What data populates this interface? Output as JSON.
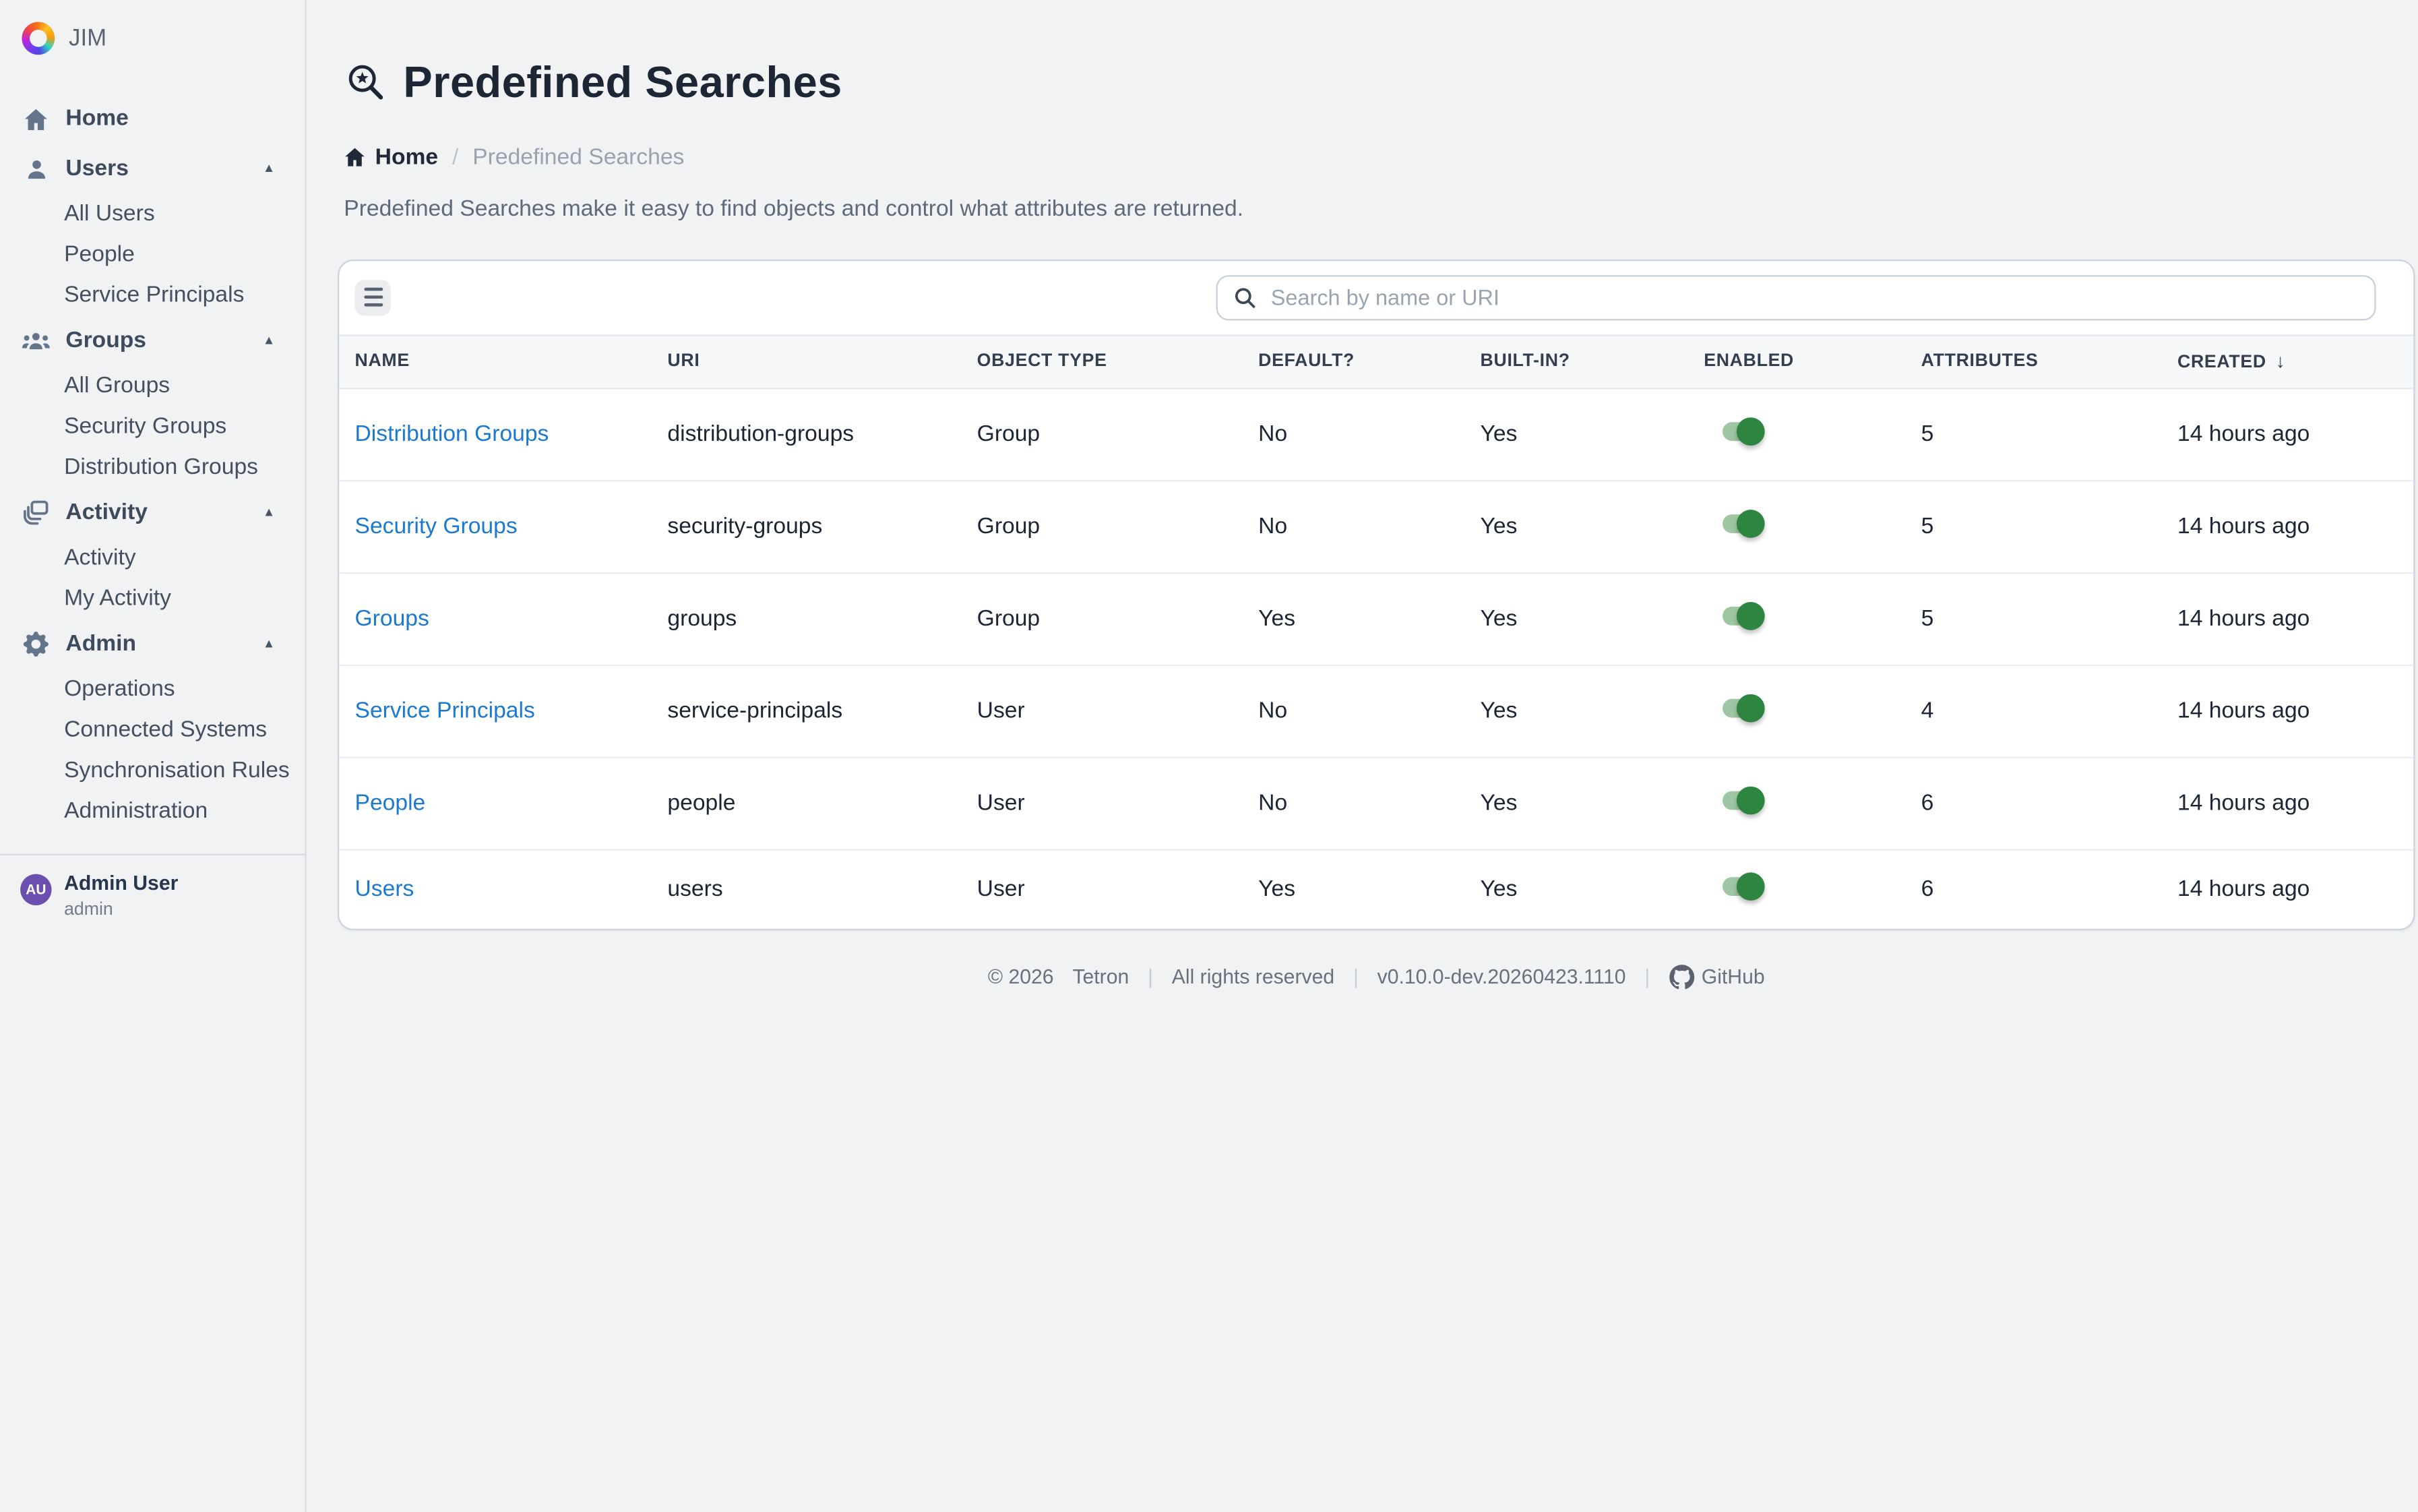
{
  "app": {
    "name": "JIM"
  },
  "glyphs": {
    "chevron_up": "▲",
    "sort_down": "↓",
    "footer_separator": "|"
  },
  "colors": {
    "link": "#1b79d1",
    "toggle_track": "#9fc6a3",
    "toggle_knob": "#2e8540",
    "avatar_bg": "#6b4fae"
  },
  "sidebar": {
    "items": [
      {
        "type": "link",
        "label": "Home",
        "icon": "home-icon"
      },
      {
        "type": "section",
        "label": "Users",
        "icon": "user-icon",
        "children": [
          "All Users",
          "People",
          "Service Principals"
        ]
      },
      {
        "type": "section",
        "label": "Groups",
        "icon": "people-group-icon",
        "children": [
          "All Groups",
          "Security Groups",
          "Distribution Groups"
        ]
      },
      {
        "type": "section",
        "label": "Activity",
        "icon": "stack-icon",
        "children": [
          "Activity",
          "My Activity"
        ]
      },
      {
        "type": "section",
        "label": "Admin",
        "icon": "gear-icon",
        "children": [
          "Operations",
          "Connected Systems",
          "Synchronisation Rules",
          "Administration"
        ]
      }
    ],
    "user": {
      "initials": "AU",
      "name": "Admin User",
      "role": "admin"
    }
  },
  "header": {
    "title": "Predefined Searches",
    "breadcrumb": {
      "home": "Home",
      "separator": "/",
      "current": "Predefined Searches"
    },
    "description": "Predefined Searches make it easy to find objects and control what attributes are returned."
  },
  "toolbar": {
    "search_placeholder": "Search by name or URI"
  },
  "table": {
    "columns": [
      "NAME",
      "URI",
      "OBJECT TYPE",
      "DEFAULT?",
      "BUILT-IN?",
      "ENABLED",
      "ATTRIBUTES",
      "CREATED"
    ],
    "sort_column": "CREATED",
    "sort_direction": "desc",
    "rows": [
      {
        "name": "Distribution Groups",
        "uri": "distribution-groups",
        "object_type": "Group",
        "default": "No",
        "built_in": "Yes",
        "enabled": true,
        "attributes": "5",
        "created": "14 hours ago"
      },
      {
        "name": "Security Groups",
        "uri": "security-groups",
        "object_type": "Group",
        "default": "No",
        "built_in": "Yes",
        "enabled": true,
        "attributes": "5",
        "created": "14 hours ago"
      },
      {
        "name": "Groups",
        "uri": "groups",
        "object_type": "Group",
        "default": "Yes",
        "built_in": "Yes",
        "enabled": true,
        "attributes": "5",
        "created": "14 hours ago"
      },
      {
        "name": "Service Principals",
        "uri": "service-principals",
        "object_type": "User",
        "default": "No",
        "built_in": "Yes",
        "enabled": true,
        "attributes": "4",
        "created": "14 hours ago"
      },
      {
        "name": "People",
        "uri": "people",
        "object_type": "User",
        "default": "No",
        "built_in": "Yes",
        "enabled": true,
        "attributes": "6",
        "created": "14 hours ago"
      },
      {
        "name": "Users",
        "uri": "users",
        "object_type": "User",
        "default": "Yes",
        "built_in": "Yes",
        "enabled": true,
        "attributes": "6",
        "created": "14 hours ago"
      }
    ]
  },
  "footer": {
    "copyright": "© 2026",
    "company": "Tetron",
    "rights": "All rights reserved",
    "version": "v0.10.0-dev.20260423.1110",
    "github_label": "GitHub"
  }
}
